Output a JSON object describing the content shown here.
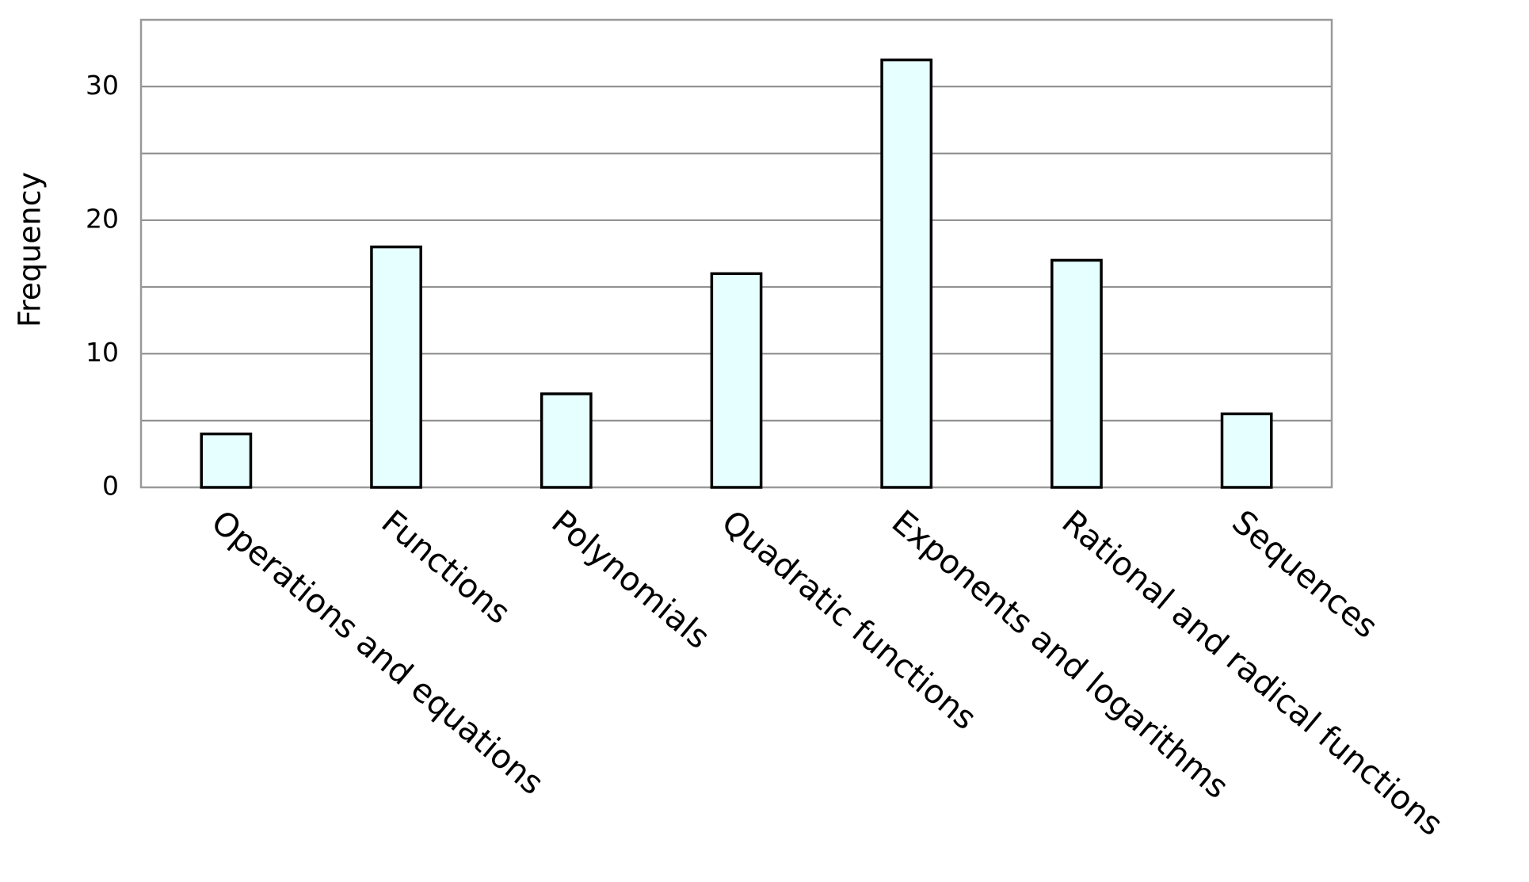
{
  "chart_data": {
    "type": "bar",
    "y_label": "Frequency",
    "categories": [
      "Operations and equations",
      "Functions",
      "Polynomials",
      "Quadratic functions",
      "Exponents and logarithms",
      "Rational and radical functions",
      "Sequences"
    ],
    "values": [
      4,
      18,
      7,
      16,
      32,
      17,
      5.5
    ],
    "color": "#e6ffff",
    "ylim": [
      0,
      35
    ],
    "yticks": [
      0,
      10,
      20,
      30
    ],
    "minor_yticks": [
      5,
      15,
      25
    ],
    "grid": true
  }
}
